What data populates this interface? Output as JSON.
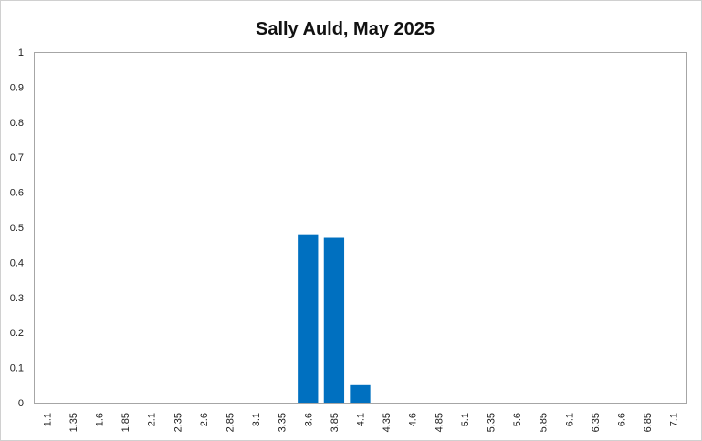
{
  "chart_data": {
    "type": "bar",
    "title": "Sally Auld, May 2025",
    "xlabel": "",
    "ylabel": "",
    "ylim": [
      0,
      1
    ],
    "yticks": [
      "0",
      "0.1",
      "0.2",
      "0.3",
      "0.4",
      "0.5",
      "0.6",
      "0.7",
      "0.8",
      "0.9",
      "1"
    ],
    "grid": false,
    "legend": "none",
    "bar_color": "#0070C0",
    "categories": [
      "1.1",
      "1.35",
      "1.6",
      "1.85",
      "2.1",
      "2.35",
      "2.6",
      "2.85",
      "3.1",
      "3.35",
      "3.6",
      "3.85",
      "4.1",
      "4.35",
      "4.6",
      "4.85",
      "5.1",
      "5.35",
      "5.6",
      "5.85",
      "6.1",
      "6.35",
      "6.6",
      "6.85",
      "7.1"
    ],
    "values": [
      0,
      0,
      0,
      0,
      0,
      0,
      0,
      0,
      0,
      0,
      0.48,
      0.47,
      0.05,
      0,
      0,
      0,
      0,
      0,
      0,
      0,
      0,
      0,
      0,
      0,
      0
    ]
  }
}
